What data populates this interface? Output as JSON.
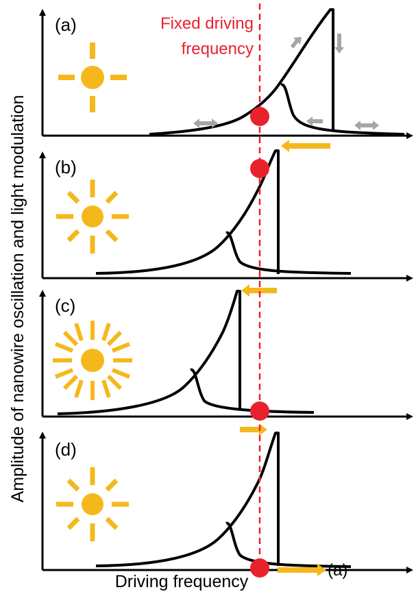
{
  "y_axis_label": "Amplitude of nanowire oscillation and light modulation",
  "x_axis_label": "Driving frequency",
  "fixed_frequency_label": [
    "Fixed driving",
    "frequency"
  ],
  "panels": [
    {
      "label": "(a)",
      "light_level": "low"
    },
    {
      "label": "(b)",
      "light_level": "medium"
    },
    {
      "label": "(c)",
      "light_level": "high"
    },
    {
      "label": "(d)",
      "light_level": "medium"
    }
  ],
  "return_arrow_label": "(a)",
  "colors": {
    "curve": "#000000",
    "fixed_frequency_line": "#e8222d",
    "operating_point": "#e8222d",
    "sun": "#f5b81c",
    "shift_arrow": "#f5b81c",
    "hysteresis_arrow": "#a6a6a6"
  },
  "icons": [
    "sun-icon",
    "operating-point-dot",
    "shift-arrow",
    "hysteresis-arrow"
  ]
}
